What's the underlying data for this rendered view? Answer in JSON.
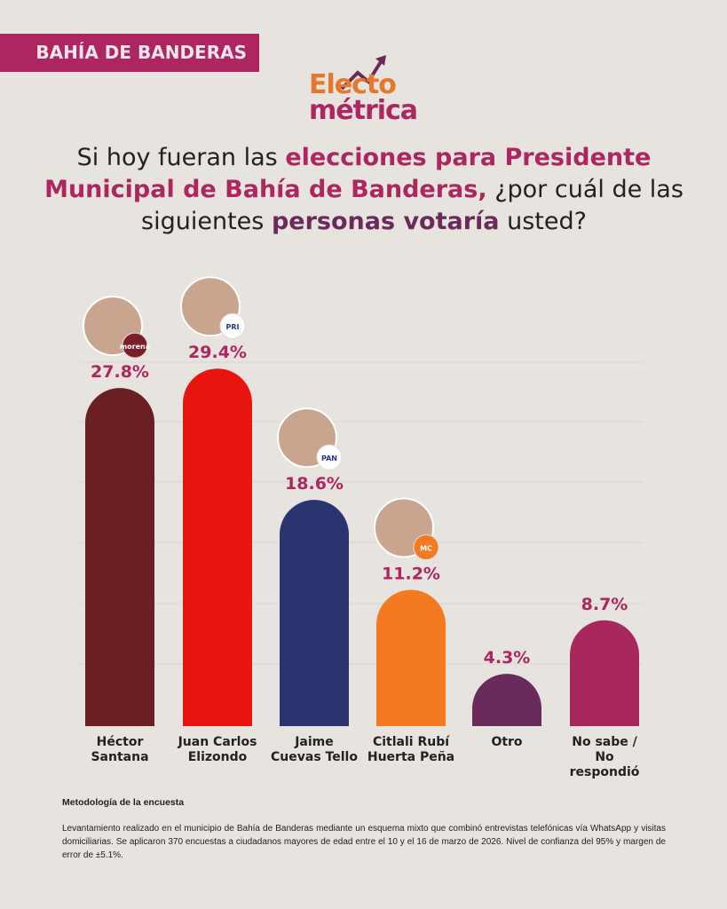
{
  "header": {
    "region": "BAHÍA DE BANDERAS",
    "logo_line1": "Electo",
    "logo_line2": "métrica"
  },
  "question": {
    "part1": "Si hoy fueran las ",
    "hl1": "elecciones para Presidente Municipal de Bahía de Banderas,",
    "part2": " ¿por cuál de las siguientes ",
    "hl2": "personas votaría",
    "part3": " usted?"
  },
  "chart_data": {
    "type": "bar",
    "categories": [
      "Héctor Santana",
      "Juan Carlos Elizondo",
      "Jaime Cuevas Tello",
      "Citlali Rubí Huerta Peña",
      "Otro",
      "No sabe / No respondió"
    ],
    "category_lines": [
      [
        "Héctor",
        "Santana"
      ],
      [
        "Juan Carlos",
        "Elizondo"
      ],
      [
        "Jaime",
        "Cuevas Tello"
      ],
      [
        "Citlali Rubí",
        "Huerta Peña"
      ],
      [
        "Otro"
      ],
      [
        "No sabe /",
        "No",
        "respondió"
      ]
    ],
    "values": [
      27.8,
      29.4,
      18.6,
      11.2,
      4.3,
      8.7
    ],
    "labels": [
      "27.8%",
      "29.4%",
      "18.6%",
      "11.2%",
      "4.3%",
      "8.7%"
    ],
    "colors": [
      "#6b1f22",
      "#e8150f",
      "#2a3470",
      "#f47a20",
      "#6b2a5c",
      "#a8285e"
    ],
    "parties": [
      "morena",
      "PRI",
      "PAN",
      "MC",
      "",
      ""
    ],
    "grid": true
  },
  "methodology": {
    "title": "Metodología de la encuesta",
    "text": "Levantamiento realizado en el municipio de Bahía de Banderas mediante un esquema mixto que combinó entrevistas telefónicas vía WhatsApp y visitas domiciliarias. Se aplicaron 370 encuestas a ciudadanos mayores de edad entre el 10 y el 16 de marzo de 2026. Nivel de confianza del 95% y margen de error de ±5.1%."
  }
}
